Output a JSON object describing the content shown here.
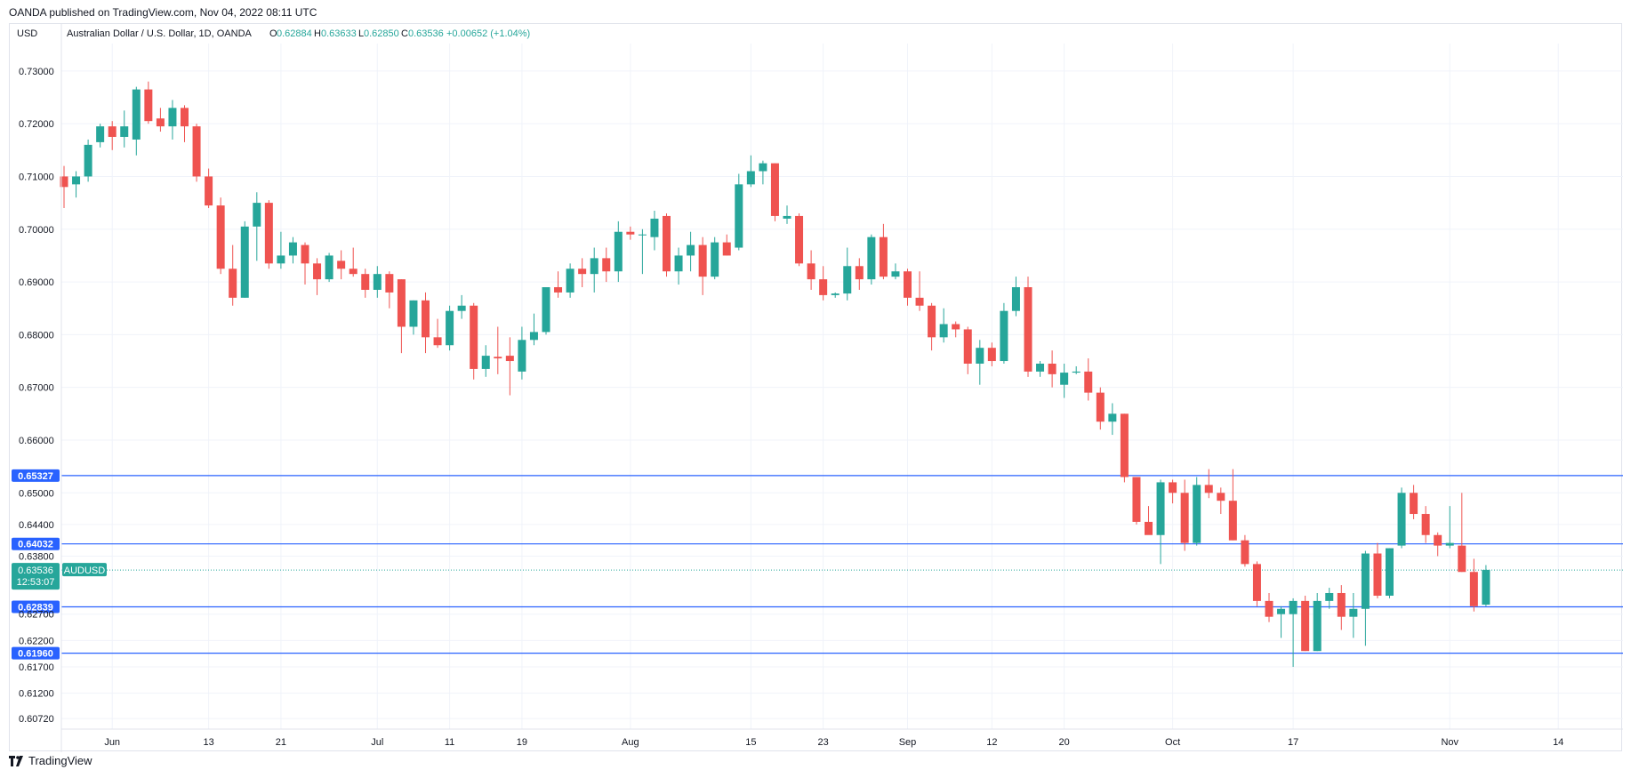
{
  "header": {
    "publisher_line": "OANDA published on TradingView.com, Nov 04, 2022 08:11 UTC"
  },
  "footer": {
    "brand": "TradingView"
  },
  "colors": {
    "up": "#26a69a",
    "down": "#ef5350",
    "level": "#2962ff",
    "grid": "#f0f3fa",
    "axis_text": "#131722"
  },
  "chart_data": {
    "type": "candlestick",
    "currency": "USD",
    "symbol_title": "Australian Dollar / U.S. Dollar, 1D, OANDA",
    "ohlc_labels": {
      "O": "0.62884",
      "H": "0.63633",
      "L": "0.62850",
      "C": "0.63536",
      "change": "+0.00652 (+1.04%)"
    },
    "ylim": [
      0.6052,
      0.7352
    ],
    "y_ticks": [
      "0.73000",
      "0.72000",
      "0.71000",
      "0.70000",
      "0.69000",
      "0.68000",
      "0.67000",
      "0.66000",
      "0.65000",
      "0.64400",
      "0.63800",
      "0.62700",
      "0.62200",
      "0.61700",
      "0.61200",
      "0.60720"
    ],
    "x_ticks": [
      {
        "label": "Jun",
        "i": 4
      },
      {
        "label": "13",
        "i": 12
      },
      {
        "label": "21",
        "i": 18
      },
      {
        "label": "Jul",
        "i": 26
      },
      {
        "label": "11",
        "i": 32
      },
      {
        "label": "19",
        "i": 38
      },
      {
        "label": "Aug",
        "i": 47
      },
      {
        "label": "15",
        "i": 57
      },
      {
        "label": "23",
        "i": 63
      },
      {
        "label": "Sep",
        "i": 70
      },
      {
        "label": "12",
        "i": 77
      },
      {
        "label": "20",
        "i": 83
      },
      {
        "label": "Oct",
        "i": 92
      },
      {
        "label": "17",
        "i": 102
      },
      {
        "label": "Nov",
        "i": 115
      },
      {
        "label": "14",
        "i": 124
      }
    ],
    "levels": [
      {
        "value": 0.65327,
        "label": "0.65327"
      },
      {
        "value": 0.64032,
        "label": "0.64032"
      },
      {
        "value": 0.62839,
        "label": "0.62839"
      },
      {
        "value": 0.6196,
        "label": "0.61960"
      }
    ],
    "last_price": {
      "value": 0.63536,
      "label": "0.63536",
      "countdown": "12:53:07",
      "symbol": "AUDUSD"
    },
    "candles": [
      {
        "o": 0.71,
        "h": 0.712,
        "l": 0.704,
        "c": 0.708
      },
      {
        "o": 0.7085,
        "h": 0.711,
        "l": 0.706,
        "c": 0.71
      },
      {
        "o": 0.71,
        "h": 0.717,
        "l": 0.709,
        "c": 0.716
      },
      {
        "o": 0.7165,
        "h": 0.72,
        "l": 0.7155,
        "c": 0.7195
      },
      {
        "o": 0.7195,
        "h": 0.7205,
        "l": 0.715,
        "c": 0.7175
      },
      {
        "o": 0.7175,
        "h": 0.7225,
        "l": 0.7155,
        "c": 0.7195
      },
      {
        "o": 0.717,
        "h": 0.727,
        "l": 0.714,
        "c": 0.7265
      },
      {
        "o": 0.7265,
        "h": 0.728,
        "l": 0.72,
        "c": 0.7205
      },
      {
        "o": 0.721,
        "h": 0.723,
        "l": 0.7185,
        "c": 0.7195
      },
      {
        "o": 0.7195,
        "h": 0.7245,
        "l": 0.717,
        "c": 0.723
      },
      {
        "o": 0.723,
        "h": 0.7235,
        "l": 0.7165,
        "c": 0.7195
      },
      {
        "o": 0.7195,
        "h": 0.72,
        "l": 0.709,
        "c": 0.71
      },
      {
        "o": 0.71,
        "h": 0.7115,
        "l": 0.704,
        "c": 0.7045
      },
      {
        "o": 0.7045,
        "h": 0.706,
        "l": 0.6915,
        "c": 0.6925
      },
      {
        "o": 0.6925,
        "h": 0.697,
        "l": 0.6855,
        "c": 0.687
      },
      {
        "o": 0.687,
        "h": 0.7015,
        "l": 0.687,
        "c": 0.7005
      },
      {
        "o": 0.7005,
        "h": 0.707,
        "l": 0.694,
        "c": 0.705
      },
      {
        "o": 0.705,
        "h": 0.7055,
        "l": 0.6925,
        "c": 0.6935
      },
      {
        "o": 0.6935,
        "h": 0.6995,
        "l": 0.6925,
        "c": 0.695
      },
      {
        "o": 0.695,
        "h": 0.6985,
        "l": 0.6935,
        "c": 0.6975
      },
      {
        "o": 0.697,
        "h": 0.6975,
        "l": 0.6895,
        "c": 0.6935
      },
      {
        "o": 0.6935,
        "h": 0.6945,
        "l": 0.6875,
        "c": 0.6905
      },
      {
        "o": 0.6905,
        "h": 0.6955,
        "l": 0.69,
        "c": 0.695
      },
      {
        "o": 0.694,
        "h": 0.696,
        "l": 0.6905,
        "c": 0.6925
      },
      {
        "o": 0.6925,
        "h": 0.6965,
        "l": 0.691,
        "c": 0.6915
      },
      {
        "o": 0.6915,
        "h": 0.6925,
        "l": 0.687,
        "c": 0.6885
      },
      {
        "o": 0.6885,
        "h": 0.693,
        "l": 0.687,
        "c": 0.6915
      },
      {
        "o": 0.6915,
        "h": 0.692,
        "l": 0.685,
        "c": 0.688
      },
      {
        "o": 0.6905,
        "h": 0.6905,
        "l": 0.6765,
        "c": 0.6815
      },
      {
        "o": 0.6815,
        "h": 0.6865,
        "l": 0.68,
        "c": 0.6865
      },
      {
        "o": 0.6865,
        "h": 0.688,
        "l": 0.6765,
        "c": 0.6795
      },
      {
        "o": 0.6795,
        "h": 0.683,
        "l": 0.6775,
        "c": 0.678
      },
      {
        "o": 0.678,
        "h": 0.6855,
        "l": 0.677,
        "c": 0.6845
      },
      {
        "o": 0.6845,
        "h": 0.6875,
        "l": 0.683,
        "c": 0.6855
      },
      {
        "o": 0.6855,
        "h": 0.686,
        "l": 0.6715,
        "c": 0.6735
      },
      {
        "o": 0.6735,
        "h": 0.678,
        "l": 0.672,
        "c": 0.676
      },
      {
        "o": 0.6758,
        "h": 0.6815,
        "l": 0.6725,
        "c": 0.6755
      },
      {
        "o": 0.676,
        "h": 0.6795,
        "l": 0.6685,
        "c": 0.675
      },
      {
        "o": 0.673,
        "h": 0.6815,
        "l": 0.6715,
        "c": 0.679
      },
      {
        "o": 0.679,
        "h": 0.684,
        "l": 0.678,
        "c": 0.6805
      },
      {
        "o": 0.6805,
        "h": 0.689,
        "l": 0.68,
        "c": 0.689
      },
      {
        "o": 0.689,
        "h": 0.692,
        "l": 0.687,
        "c": 0.688
      },
      {
        "o": 0.688,
        "h": 0.6935,
        "l": 0.687,
        "c": 0.6925
      },
      {
        "o": 0.6925,
        "h": 0.6945,
        "l": 0.689,
        "c": 0.6915
      },
      {
        "o": 0.6915,
        "h": 0.6965,
        "l": 0.688,
        "c": 0.6945
      },
      {
        "o": 0.6945,
        "h": 0.6965,
        "l": 0.69,
        "c": 0.692
      },
      {
        "o": 0.692,
        "h": 0.7015,
        "l": 0.69,
        "c": 0.6995
      },
      {
        "o": 0.6995,
        "h": 0.7005,
        "l": 0.698,
        "c": 0.699
      },
      {
        "o": 0.699,
        "h": 0.7,
        "l": 0.6915,
        "c": 0.699
      },
      {
        "o": 0.6985,
        "h": 0.7035,
        "l": 0.696,
        "c": 0.702
      },
      {
        "o": 0.7025,
        "h": 0.703,
        "l": 0.691,
        "c": 0.692
      },
      {
        "o": 0.692,
        "h": 0.6965,
        "l": 0.6895,
        "c": 0.695
      },
      {
        "o": 0.695,
        "h": 0.6995,
        "l": 0.692,
        "c": 0.697
      },
      {
        "o": 0.697,
        "h": 0.6985,
        "l": 0.6875,
        "c": 0.691
      },
      {
        "o": 0.691,
        "h": 0.6985,
        "l": 0.6905,
        "c": 0.6975
      },
      {
        "o": 0.6975,
        "h": 0.699,
        "l": 0.695,
        "c": 0.695
      },
      {
        "o": 0.6965,
        "h": 0.7105,
        "l": 0.696,
        "c": 0.7085
      },
      {
        "o": 0.7085,
        "h": 0.714,
        "l": 0.708,
        "c": 0.711
      },
      {
        "o": 0.711,
        "h": 0.713,
        "l": 0.7085,
        "c": 0.7125
      },
      {
        "o": 0.7125,
        "h": 0.7125,
        "l": 0.7015,
        "c": 0.7025
      },
      {
        "o": 0.702,
        "h": 0.7045,
        "l": 0.701,
        "c": 0.7025
      },
      {
        "o": 0.7025,
        "h": 0.703,
        "l": 0.693,
        "c": 0.6935
      },
      {
        "o": 0.6935,
        "h": 0.696,
        "l": 0.6885,
        "c": 0.6905
      },
      {
        "o": 0.6905,
        "h": 0.693,
        "l": 0.6865,
        "c": 0.6875
      },
      {
        "o": 0.6875,
        "h": 0.688,
        "l": 0.687,
        "c": 0.6878
      },
      {
        "o": 0.6878,
        "h": 0.6965,
        "l": 0.6865,
        "c": 0.693
      },
      {
        "o": 0.693,
        "h": 0.6945,
        "l": 0.6885,
        "c": 0.6905
      },
      {
        "o": 0.6905,
        "h": 0.699,
        "l": 0.6895,
        "c": 0.6985
      },
      {
        "o": 0.6985,
        "h": 0.701,
        "l": 0.6905,
        "c": 0.691
      },
      {
        "o": 0.691,
        "h": 0.6935,
        "l": 0.6905,
        "c": 0.692
      },
      {
        "o": 0.692,
        "h": 0.6925,
        "l": 0.6855,
        "c": 0.687
      },
      {
        "o": 0.687,
        "h": 0.692,
        "l": 0.6845,
        "c": 0.6855
      },
      {
        "o": 0.6855,
        "h": 0.686,
        "l": 0.677,
        "c": 0.6795
      },
      {
        "o": 0.6795,
        "h": 0.685,
        "l": 0.6785,
        "c": 0.682
      },
      {
        "o": 0.682,
        "h": 0.6825,
        "l": 0.6795,
        "c": 0.681
      },
      {
        "o": 0.681,
        "h": 0.6815,
        "l": 0.6725,
        "c": 0.6745
      },
      {
        "o": 0.6745,
        "h": 0.679,
        "l": 0.6705,
        "c": 0.6775
      },
      {
        "o": 0.6775,
        "h": 0.6785,
        "l": 0.674,
        "c": 0.675
      },
      {
        "o": 0.675,
        "h": 0.686,
        "l": 0.6745,
        "c": 0.6845
      },
      {
        "o": 0.6845,
        "h": 0.691,
        "l": 0.6835,
        "c": 0.689
      },
      {
        "o": 0.689,
        "h": 0.691,
        "l": 0.672,
        "c": 0.673
      },
      {
        "o": 0.673,
        "h": 0.675,
        "l": 0.672,
        "c": 0.6745
      },
      {
        "o": 0.6745,
        "h": 0.677,
        "l": 0.67,
        "c": 0.6725
      },
      {
        "o": 0.6705,
        "h": 0.6745,
        "l": 0.668,
        "c": 0.6728
      },
      {
        "o": 0.6728,
        "h": 0.674,
        "l": 0.6725,
        "c": 0.673
      },
      {
        "o": 0.673,
        "h": 0.6755,
        "l": 0.6675,
        "c": 0.669
      },
      {
        "o": 0.669,
        "h": 0.67,
        "l": 0.662,
        "c": 0.6635
      },
      {
        "o": 0.6635,
        "h": 0.667,
        "l": 0.661,
        "c": 0.665
      },
      {
        "o": 0.665,
        "h": 0.665,
        "l": 0.652,
        "c": 0.653
      },
      {
        "o": 0.653,
        "h": 0.653,
        "l": 0.644,
        "c": 0.6445
      },
      {
        "o": 0.6445,
        "h": 0.6475,
        "l": 0.6425,
        "c": 0.642
      },
      {
        "o": 0.642,
        "h": 0.6525,
        "l": 0.6365,
        "c": 0.652
      },
      {
        "o": 0.652,
        "h": 0.6525,
        "l": 0.648,
        "c": 0.65
      },
      {
        "o": 0.65,
        "h": 0.6525,
        "l": 0.639,
        "c": 0.6405
      },
      {
        "o": 0.6405,
        "h": 0.653,
        "l": 0.64,
        "c": 0.6515
      },
      {
        "o": 0.6515,
        "h": 0.6545,
        "l": 0.649,
        "c": 0.65
      },
      {
        "o": 0.65,
        "h": 0.651,
        "l": 0.646,
        "c": 0.6485
      },
      {
        "o": 0.6485,
        "h": 0.6545,
        "l": 0.641,
        "c": 0.641
      },
      {
        "o": 0.641,
        "h": 0.642,
        "l": 0.636,
        "c": 0.6365
      },
      {
        "o": 0.6365,
        "h": 0.637,
        "l": 0.6285,
        "c": 0.6295
      },
      {
        "o": 0.6295,
        "h": 0.631,
        "l": 0.6255,
        "c": 0.6265
      },
      {
        "o": 0.627,
        "h": 0.6285,
        "l": 0.6225,
        "c": 0.628
      },
      {
        "o": 0.627,
        "h": 0.63,
        "l": 0.617,
        "c": 0.6295
      },
      {
        "o": 0.6295,
        "h": 0.6305,
        "l": 0.62,
        "c": 0.62
      },
      {
        "o": 0.62,
        "h": 0.631,
        "l": 0.62,
        "c": 0.6295
      },
      {
        "o": 0.6295,
        "h": 0.632,
        "l": 0.628,
        "c": 0.631
      },
      {
        "o": 0.631,
        "h": 0.6325,
        "l": 0.624,
        "c": 0.6265
      },
      {
        "o": 0.6265,
        "h": 0.631,
        "l": 0.6225,
        "c": 0.628
      },
      {
        "o": 0.628,
        "h": 0.639,
        "l": 0.621,
        "c": 0.6385
      },
      {
        "o": 0.6385,
        "h": 0.6405,
        "l": 0.63,
        "c": 0.6305
      },
      {
        "o": 0.6305,
        "h": 0.6395,
        "l": 0.63,
        "c": 0.6395
      },
      {
        "o": 0.64,
        "h": 0.651,
        "l": 0.6395,
        "c": 0.65
      },
      {
        "o": 0.65,
        "h": 0.6515,
        "l": 0.645,
        "c": 0.646
      },
      {
        "o": 0.646,
        "h": 0.6475,
        "l": 0.6405,
        "c": 0.642
      },
      {
        "o": 0.642,
        "h": 0.6425,
        "l": 0.638,
        "c": 0.64
      },
      {
        "o": 0.64,
        "h": 0.6475,
        "l": 0.6395,
        "c": 0.6405
      },
      {
        "o": 0.64,
        "h": 0.65,
        "l": 0.635,
        "c": 0.635
      },
      {
        "o": 0.635,
        "h": 0.6375,
        "l": 0.6275,
        "c": 0.6285
      },
      {
        "o": 0.6288,
        "h": 0.6363,
        "l": 0.6285,
        "c": 0.6354
      }
    ]
  }
}
